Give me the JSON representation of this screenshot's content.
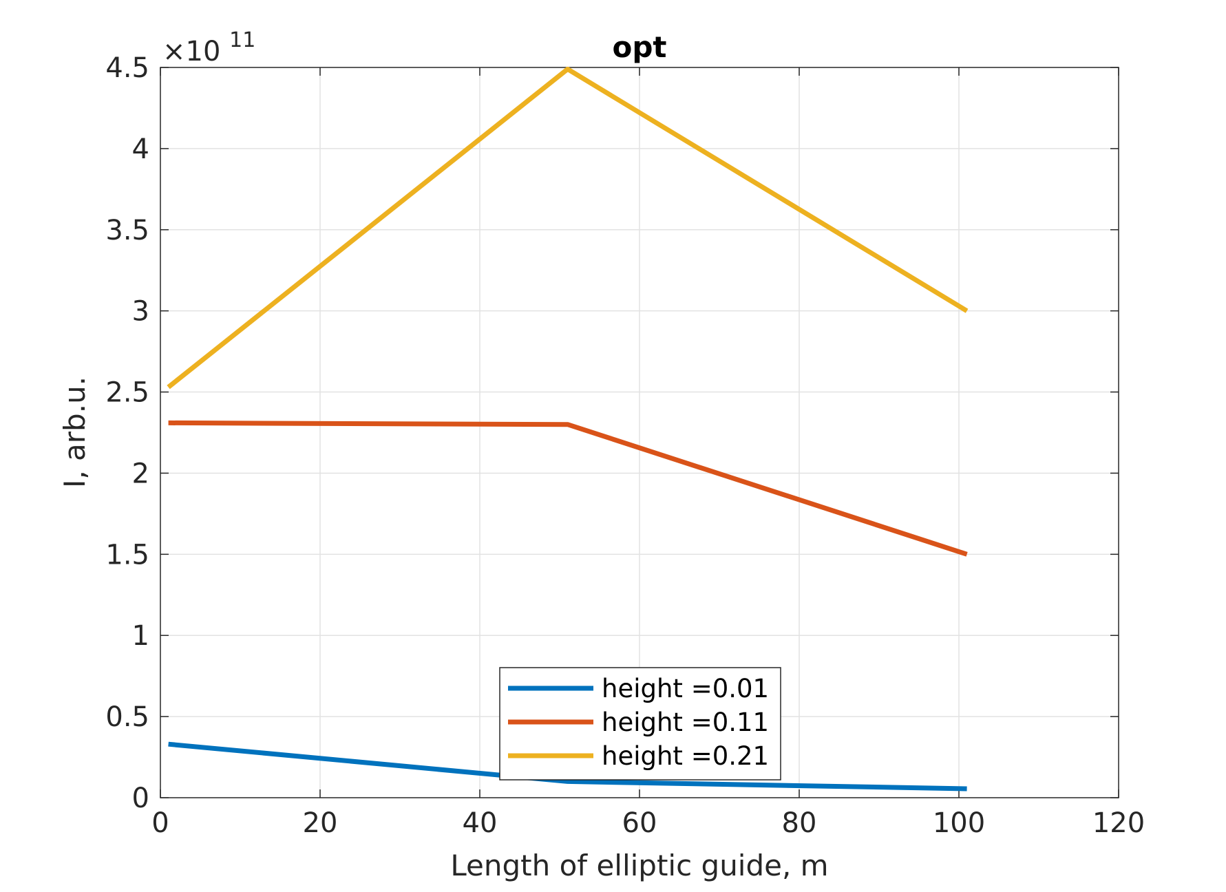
{
  "chart_data": {
    "type": "line",
    "title": "opt",
    "xlabel": "Length of elliptic guide, m",
    "ylabel": "I, arb.u.",
    "y_exponent_label": {
      "prefix": "×10",
      "power": "11"
    },
    "xlim": [
      0,
      120
    ],
    "ylim": [
      0,
      4.5
    ],
    "x_ticks": [
      0,
      20,
      40,
      60,
      80,
      100,
      120
    ],
    "x_tick_labels": [
      "0",
      "20",
      "40",
      "60",
      "80",
      "100",
      "120"
    ],
    "y_ticks": [
      0,
      0.5,
      1,
      1.5,
      2,
      2.5,
      3,
      3.5,
      4,
      4.5
    ],
    "y_tick_labels": [
      "0",
      "0.5",
      "1",
      "1.5",
      "2",
      "2.5",
      "3",
      "3.5",
      "4",
      "4.5"
    ],
    "grid": true,
    "legend_position": "bottom-center",
    "x": [
      1,
      51,
      101
    ],
    "series": [
      {
        "name": "height =0.01",
        "color": "#0072BD",
        "values": [
          0.33,
          0.1,
          0.055
        ]
      },
      {
        "name": "height =0.11",
        "color": "#D95319",
        "values": [
          2.31,
          2.3,
          1.5
        ]
      },
      {
        "name": "height =0.21",
        "color": "#EDB120",
        "values": [
          2.53,
          4.49,
          3.0
        ]
      }
    ]
  }
}
